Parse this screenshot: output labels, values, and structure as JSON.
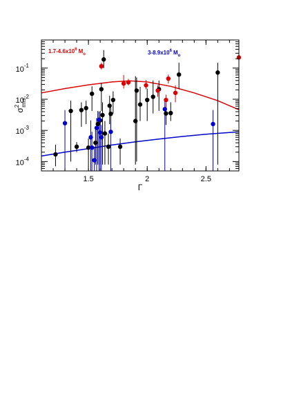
{
  "chart_data": {
    "type": "scatter",
    "title": "",
    "xlabel": "Γ",
    "ylabel_main": "σ",
    "ylabel_sup": "2",
    "ylabel_sub": "rms",
    "xlim": [
      1.1,
      2.78
    ],
    "ylim": [
      5e-05,
      0.8
    ],
    "yscale": "log",
    "grid": false,
    "x_ticks": [
      {
        "value": 1.5,
        "label": "1.5"
      },
      {
        "value": 2,
        "label": "2"
      },
      {
        "value": 2.5,
        "label": "2.5"
      }
    ],
    "y_ticks": [
      {
        "value": 0.0001,
        "base": "10",
        "exp": "-4"
      },
      {
        "value": 0.001,
        "base": "10",
        "exp": "-3"
      },
      {
        "value": 0.01,
        "base": "10",
        "exp": "-2"
      },
      {
        "value": 0.1,
        "base": "10",
        "exp": "-1"
      }
    ],
    "legend": [
      {
        "name": "1.7-4.6x10",
        "exp": "6",
        "unit": "M",
        "sub": "o",
        "color": "#dd0000",
        "placement": "top-left"
      },
      {
        "name": "3-8.9x10",
        "exp": "6",
        "unit": "M",
        "sub": "o",
        "color": "#0000cc",
        "placement": "top-right"
      }
    ],
    "series": [
      {
        "color": "#000000",
        "points": [
          {
            "x": 1.22,
            "y": 0.00017,
            "lo": 7e-05,
            "hi": 0.00035
          },
          {
            "x": 1.35,
            "y": 0.0042,
            "lo": 0.0001,
            "hi": 0.009
          },
          {
            "x": 1.4,
            "y": 0.0003,
            "lo": 0.0002,
            "hi": 0.00042
          },
          {
            "x": 1.44,
            "y": 0.0045,
            "lo": 0.0013,
            "hi": 0.008
          },
          {
            "x": 1.48,
            "y": 0.0052,
            "lo": 0.0016,
            "hi": 0.009
          },
          {
            "x": 1.5,
            "y": 0.00028,
            "lo": 7e-05,
            "hi": 0.00055
          },
          {
            "x": 1.53,
            "y": 0.015,
            "lo": 0.0042,
            "hi": 0.026
          },
          {
            "x": 1.56,
            "y": 0.0004,
            "lo": 8e-05,
            "hi": 0.0012
          },
          {
            "x": 1.58,
            "y": 0.0016,
            "lo": 8e-05,
            "hi": 0.0042
          },
          {
            "x": 1.6,
            "y": 0.0021,
            "lo": 8e-05,
            "hi": 0.0042
          },
          {
            "x": 1.61,
            "y": 0.021,
            "lo": 0.0042,
            "hi": 0.034
          },
          {
            "x": 1.62,
            "y": 0.0031,
            "lo": 8e-05,
            "hi": 0.008
          },
          {
            "x": 1.63,
            "y": 0.19,
            "lo": 0.1,
            "hi": 0.38
          },
          {
            "x": 1.64,
            "y": 0.0008,
            "lo": 8e-05,
            "hi": 0.002
          },
          {
            "x": 1.67,
            "y": 0.0003,
            "lo": 8e-05,
            "hi": 0.0008
          },
          {
            "x": 1.68,
            "y": 0.0062,
            "lo": 0.0016,
            "hi": 0.013
          },
          {
            "x": 1.69,
            "y": 0.0034,
            "lo": 0.0008,
            "hi": 0.007
          },
          {
            "x": 1.71,
            "y": 0.0095,
            "lo": 0.0035,
            "hi": 0.018
          },
          {
            "x": 1.77,
            "y": 0.0003,
            "lo": 8e-05,
            "hi": 0.00055
          },
          {
            "x": 1.9,
            "y": 0.002,
            "lo": 8e-05,
            "hi": 0.055
          },
          {
            "x": 1.91,
            "y": 0.019,
            "lo": 0.0001,
            "hi": 0.05
          },
          {
            "x": 1.94,
            "y": 0.0068,
            "lo": 0.002,
            "hi": 0.025
          },
          {
            "x": 2.0,
            "y": 0.0095,
            "lo": 0.002,
            "hi": 0.022
          },
          {
            "x": 2.05,
            "y": 0.012,
            "lo": 0.0035,
            "hi": 0.04
          },
          {
            "x": 2.1,
            "y": 0.021,
            "lo": 0.0042,
            "hi": 0.04
          },
          {
            "x": 2.16,
            "y": 0.0035,
            "lo": 0.0015,
            "hi": 0.007
          },
          {
            "x": 2.2,
            "y": 0.0036,
            "lo": 0.002,
            "hi": 0.008
          },
          {
            "x": 2.27,
            "y": 0.062,
            "lo": 0.021,
            "hi": 0.15
          },
          {
            "x": 2.6,
            "y": 0.072,
            "lo": 8e-05,
            "hi": 0.15
          }
        ]
      },
      {
        "color": "#dd0000",
        "points": [
          {
            "x": 1.61,
            "y": 0.115,
            "lo": 0.09,
            "hi": 0.15
          },
          {
            "x": 1.8,
            "y": 0.032,
            "lo": 0.022,
            "hi": 0.06
          },
          {
            "x": 1.84,
            "y": 0.035,
            "lo": 0.028,
            "hi": 0.045
          },
          {
            "x": 1.99,
            "y": 0.028,
            "lo": 0.021,
            "hi": 0.042
          },
          {
            "x": 2.09,
            "y": 0.019,
            "lo": 0.012,
            "hi": 0.028
          },
          {
            "x": 2.16,
            "y": 0.0095,
            "lo": 0.005,
            "hi": 0.014
          },
          {
            "x": 2.18,
            "y": 0.046,
            "lo": 0.032,
            "hi": 0.062
          },
          {
            "x": 2.24,
            "y": 0.016,
            "lo": 0.008,
            "hi": 0.028
          },
          {
            "x": 2.78,
            "y": 0.22,
            "lo": 0.19,
            "hi": 0.26
          }
        ]
      },
      {
        "color": "#0000cc",
        "points": [
          {
            "x": 1.3,
            "y": 0.0017,
            "lo": 5e-05,
            "hi": 0.0045
          },
          {
            "x": 1.52,
            "y": 0.0006,
            "lo": 5e-05,
            "hi": 0.0021
          },
          {
            "x": 1.53,
            "y": 0.00028,
            "lo": 5e-05,
            "hi": 0.0009
          },
          {
            "x": 1.55,
            "y": 0.00011,
            "lo": 5e-05,
            "hi": 0.0003
          },
          {
            "x": 1.57,
            "y": 0.0012,
            "lo": 5e-05,
            "hi": 0.0025
          },
          {
            "x": 1.59,
            "y": 0.0022,
            "lo": 5e-05,
            "hi": 0.004
          },
          {
            "x": 1.6,
            "y": 0.00085,
            "lo": 5e-05,
            "hi": 0.0021
          },
          {
            "x": 1.61,
            "y": 0.0006,
            "lo": 5e-05,
            "hi": 0.0015
          },
          {
            "x": 1.69,
            "y": 0.0009,
            "lo": 5e-05,
            "hi": 0.0021
          },
          {
            "x": 2.15,
            "y": 0.0048,
            "lo": 5e-05,
            "hi": 0.01
          },
          {
            "x": 2.56,
            "y": 0.0016,
            "lo": 5e-05,
            "hi": 0.0045
          }
        ]
      }
    ],
    "fit_curves": [
      {
        "color": "#dd0000",
        "x": [
          1.1,
          1.3,
          1.5,
          1.7,
          1.85,
          2.0,
          2.2,
          2.4,
          2.6,
          2.78
        ],
        "y": [
          0.016,
          0.022,
          0.029,
          0.036,
          0.039,
          0.036,
          0.026,
          0.016,
          0.009,
          0.0046
        ]
      },
      {
        "color": "#0000cc",
        "x": [
          1.1,
          1.3,
          1.5,
          1.7,
          1.9,
          2.1,
          2.3,
          2.5,
          2.78
        ],
        "y": [
          0.00015,
          0.0002,
          0.00026,
          0.00034,
          0.00043,
          0.00053,
          0.00064,
          0.00075,
          0.0009
        ]
      }
    ]
  }
}
